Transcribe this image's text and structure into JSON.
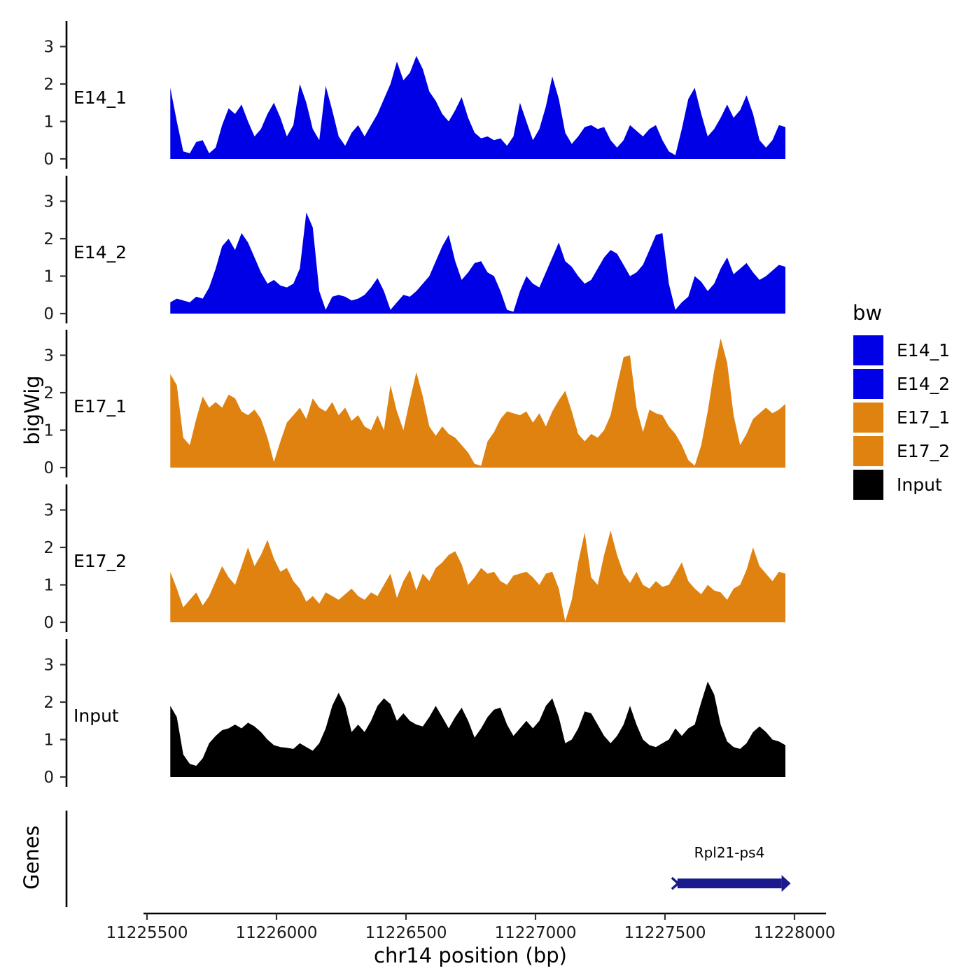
{
  "figure": {
    "y_axis_title": "bigWig",
    "genes_axis_title": "Genes",
    "x_axis_title": "chr14 position (bp)"
  },
  "legend": {
    "title": "bw",
    "entries": [
      {
        "label": "E14_1",
        "color": "#0000E6"
      },
      {
        "label": "E14_2",
        "color": "#0000E6"
      },
      {
        "label": "E17_1",
        "color": "#E0820F"
      },
      {
        "label": "E17_2",
        "color": "#E0820F"
      },
      {
        "label": "Input",
        "color": "#000000"
      }
    ]
  },
  "gene": {
    "label": "Rpl21-ps4",
    "start": 11227540,
    "end": 11227980,
    "strand": "+",
    "color": "#1A1A8C"
  },
  "chart_data": {
    "type": "area",
    "title": "",
    "xlabel": "chr14 position (bp)",
    "ylabel": "bigWig",
    "x_domain": [
      11225500,
      11228000
    ],
    "x_ticks": [
      11225500,
      11226000,
      11226500,
      11227000,
      11227500,
      11228000
    ],
    "y_ticks": [
      0,
      1,
      2,
      3
    ],
    "ylim": [
      0,
      3.5
    ],
    "x_start": 11225590,
    "x_step": 25,
    "series": [
      {
        "name": "E14_1",
        "color": "#0000E6",
        "values": [
          1.9,
          1.0,
          0.2,
          0.15,
          0.45,
          0.5,
          0.15,
          0.3,
          0.9,
          1.35,
          1.2,
          1.45,
          1.0,
          0.6,
          0.8,
          1.2,
          1.5,
          1.1,
          0.6,
          0.9,
          2.0,
          1.5,
          0.8,
          0.5,
          1.95,
          1.3,
          0.6,
          0.35,
          0.7,
          0.9,
          0.6,
          0.9,
          1.2,
          1.6,
          2.0,
          2.6,
          2.1,
          2.3,
          2.75,
          2.4,
          1.8,
          1.55,
          1.2,
          1.0,
          1.3,
          1.65,
          1.1,
          0.7,
          0.55,
          0.6,
          0.5,
          0.55,
          0.35,
          0.6,
          1.5,
          1.0,
          0.5,
          0.8,
          1.4,
          2.2,
          1.6,
          0.7,
          0.4,
          0.6,
          0.85,
          0.9,
          0.8,
          0.85,
          0.5,
          0.3,
          0.5,
          0.9,
          0.75,
          0.6,
          0.8,
          0.9,
          0.5,
          0.2,
          0.1,
          0.8,
          1.6,
          1.9,
          1.2,
          0.6,
          0.8,
          1.1,
          1.45,
          1.1,
          1.3,
          1.7,
          1.2,
          0.5,
          0.3,
          0.5,
          0.9,
          0.85
        ]
      },
      {
        "name": "E14_2",
        "color": "#0000E6",
        "values": [
          0.3,
          0.4,
          0.35,
          0.3,
          0.45,
          0.4,
          0.7,
          1.2,
          1.8,
          2.0,
          1.7,
          2.15,
          1.9,
          1.5,
          1.1,
          0.8,
          0.9,
          0.75,
          0.7,
          0.8,
          1.2,
          2.7,
          2.3,
          0.6,
          0.1,
          0.45,
          0.5,
          0.45,
          0.35,
          0.4,
          0.5,
          0.7,
          0.95,
          0.6,
          0.1,
          0.3,
          0.5,
          0.45,
          0.6,
          0.8,
          1.0,
          1.4,
          1.8,
          2.1,
          1.4,
          0.9,
          1.1,
          1.35,
          1.4,
          1.1,
          1.0,
          0.6,
          0.1,
          0.05,
          0.6,
          1.0,
          0.8,
          0.7,
          1.1,
          1.5,
          1.9,
          1.4,
          1.25,
          1.0,
          0.8,
          0.9,
          1.2,
          1.5,
          1.7,
          1.6,
          1.3,
          1.0,
          1.1,
          1.3,
          1.7,
          2.1,
          2.15,
          0.8,
          0.1,
          0.3,
          0.45,
          1.0,
          0.85,
          0.6,
          0.8,
          1.2,
          1.5,
          1.05,
          1.2,
          1.35,
          1.1,
          0.9,
          1.0,
          1.15,
          1.3,
          1.25
        ]
      },
      {
        "name": "E17_1",
        "color": "#E0820F",
        "values": [
          2.5,
          2.2,
          0.8,
          0.6,
          1.3,
          1.9,
          1.6,
          1.75,
          1.6,
          1.95,
          1.85,
          1.5,
          1.4,
          1.55,
          1.3,
          0.8,
          0.15,
          0.7,
          1.2,
          1.4,
          1.6,
          1.3,
          1.85,
          1.6,
          1.5,
          1.75,
          1.4,
          1.6,
          1.25,
          1.4,
          1.1,
          1.0,
          1.4,
          1.0,
          2.2,
          1.5,
          1.0,
          1.8,
          2.55,
          1.9,
          1.1,
          0.85,
          1.1,
          0.9,
          0.8,
          0.6,
          0.4,
          0.1,
          0.05,
          0.7,
          0.95,
          1.3,
          1.5,
          1.45,
          1.4,
          1.5,
          1.2,
          1.45,
          1.1,
          1.5,
          1.8,
          2.05,
          1.5,
          0.9,
          0.7,
          0.9,
          0.8,
          1.0,
          1.4,
          2.2,
          2.95,
          3.0,
          1.6,
          0.95,
          1.55,
          1.45,
          1.4,
          1.1,
          0.9,
          0.6,
          0.2,
          0.05,
          0.6,
          1.5,
          2.6,
          3.45,
          2.8,
          1.4,
          0.6,
          0.9,
          1.3,
          1.45,
          1.6,
          1.45,
          1.55,
          1.7
        ]
      },
      {
        "name": "E17_2",
        "color": "#E0820F",
        "values": [
          1.35,
          0.9,
          0.4,
          0.6,
          0.8,
          0.45,
          0.7,
          1.1,
          1.5,
          1.2,
          1.0,
          1.5,
          2.0,
          1.5,
          1.8,
          2.2,
          1.7,
          1.35,
          1.45,
          1.1,
          0.9,
          0.55,
          0.7,
          0.5,
          0.8,
          0.7,
          0.6,
          0.75,
          0.9,
          0.7,
          0.6,
          0.8,
          0.7,
          1.0,
          1.3,
          0.65,
          1.1,
          1.4,
          0.85,
          1.3,
          1.1,
          1.45,
          1.6,
          1.8,
          1.9,
          1.55,
          1.0,
          1.2,
          1.45,
          1.3,
          1.35,
          1.1,
          1.0,
          1.25,
          1.3,
          1.35,
          1.2,
          1.0,
          1.3,
          1.35,
          0.9,
          0.02,
          0.6,
          1.6,
          2.4,
          1.2,
          1.0,
          1.8,
          2.45,
          1.8,
          1.3,
          1.05,
          1.35,
          1.0,
          0.9,
          1.1,
          0.95,
          1.0,
          1.3,
          1.6,
          1.1,
          0.9,
          0.75,
          1.0,
          0.85,
          0.8,
          0.6,
          0.9,
          1.0,
          1.4,
          2.0,
          1.5,
          1.3,
          1.1,
          1.35,
          1.3
        ]
      },
      {
        "name": "Input",
        "color": "#000000",
        "values": [
          1.9,
          1.6,
          0.6,
          0.35,
          0.3,
          0.5,
          0.9,
          1.1,
          1.25,
          1.3,
          1.4,
          1.3,
          1.45,
          1.35,
          1.2,
          1.0,
          0.85,
          0.8,
          0.78,
          0.75,
          0.9,
          0.8,
          0.7,
          0.9,
          1.3,
          1.9,
          2.25,
          1.9,
          1.2,
          1.4,
          1.2,
          1.5,
          1.9,
          2.1,
          1.95,
          1.5,
          1.7,
          1.5,
          1.4,
          1.35,
          1.6,
          1.9,
          1.6,
          1.3,
          1.6,
          1.85,
          1.5,
          1.05,
          1.3,
          1.6,
          1.8,
          1.85,
          1.4,
          1.1,
          1.3,
          1.5,
          1.3,
          1.5,
          1.9,
          2.1,
          1.6,
          0.9,
          1.0,
          1.3,
          1.75,
          1.7,
          1.4,
          1.1,
          0.9,
          1.1,
          1.4,
          1.9,
          1.4,
          1.0,
          0.85,
          0.8,
          0.9,
          1.0,
          1.3,
          1.1,
          1.3,
          1.4,
          2.0,
          2.55,
          2.2,
          1.4,
          0.95,
          0.8,
          0.75,
          0.9,
          1.2,
          1.35,
          1.2,
          1.0,
          0.95,
          0.85
        ]
      }
    ]
  }
}
